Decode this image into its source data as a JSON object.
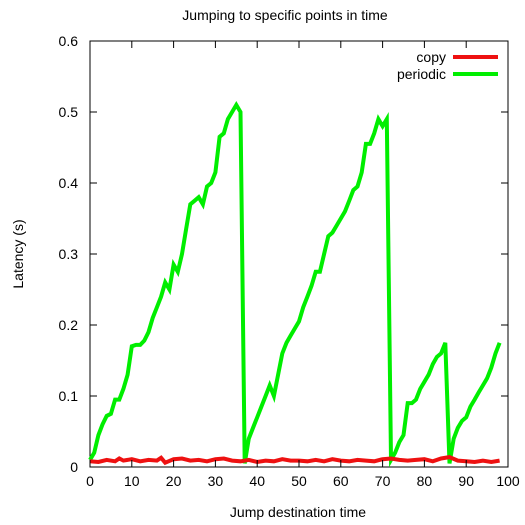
{
  "chart_data": {
    "type": "line",
    "title": "Jumping to specific points in time",
    "xlabel": "Jump destination time",
    "ylabel": "Latency (s)",
    "xlim": [
      0,
      100
    ],
    "ylim": [
      0,
      0.6
    ],
    "xticks": [
      0,
      10,
      20,
      30,
      40,
      50,
      60,
      70,
      80,
      90,
      100
    ],
    "yticks": [
      0,
      0.1,
      0.2,
      0.3,
      0.4,
      0.5,
      0.6
    ],
    "ytick_labels": [
      "0",
      "0.1",
      "0.2",
      "0.3",
      "0.4",
      "0.5",
      "0.6"
    ],
    "grid": false,
    "legend_position": "top-right",
    "series": [
      {
        "name": "copy",
        "color": "#ee1111",
        "x": [
          0,
          2,
          4,
          6,
          7,
          8,
          10,
          12,
          14,
          16,
          17,
          18,
          20,
          22,
          24,
          26,
          28,
          30,
          32,
          34,
          36,
          38,
          40,
          42,
          44,
          46,
          48,
          50,
          52,
          54,
          56,
          58,
          60,
          62,
          64,
          66,
          68,
          70,
          72,
          74,
          76,
          78,
          80,
          82,
          84,
          86,
          88,
          90,
          92,
          94,
          96,
          98
        ],
        "y": [
          0.008,
          0.007,
          0.01,
          0.008,
          0.012,
          0.009,
          0.011,
          0.008,
          0.01,
          0.009,
          0.013,
          0.006,
          0.011,
          0.012,
          0.009,
          0.01,
          0.008,
          0.011,
          0.012,
          0.009,
          0.008,
          0.01,
          0.007,
          0.009,
          0.008,
          0.011,
          0.009,
          0.009,
          0.008,
          0.01,
          0.008,
          0.011,
          0.009,
          0.008,
          0.01,
          0.009,
          0.008,
          0.011,
          0.012,
          0.01,
          0.009,
          0.01,
          0.011,
          0.008,
          0.012,
          0.014,
          0.009,
          0.008,
          0.007,
          0.009,
          0.007,
          0.009
        ]
      },
      {
        "name": "periodic",
        "color": "#00ee00",
        "x": [
          0,
          1,
          2,
          3,
          4,
          5,
          6,
          7,
          8,
          9,
          10,
          11,
          12,
          13,
          14,
          15,
          16,
          17,
          18,
          19,
          20,
          21,
          22,
          23,
          24,
          25,
          26,
          27,
          28,
          29,
          30,
          31,
          32,
          33,
          34,
          35,
          36,
          37,
          38,
          39,
          40,
          41,
          42,
          43,
          44,
          45,
          46,
          47,
          48,
          49,
          50,
          51,
          52,
          53,
          54,
          55,
          56,
          57,
          58,
          59,
          60,
          61,
          62,
          63,
          64,
          65,
          66,
          67,
          68,
          69,
          70,
          71,
          72,
          73,
          74,
          75,
          76,
          77,
          78,
          79,
          80,
          81,
          82,
          83,
          84,
          85,
          86,
          87,
          88,
          89,
          90,
          91,
          92,
          93,
          94,
          95,
          96,
          97,
          98
        ],
        "y": [
          0.01,
          0.02,
          0.045,
          0.06,
          0.072,
          0.075,
          0.095,
          0.095,
          0.11,
          0.13,
          0.17,
          0.172,
          0.172,
          0.178,
          0.19,
          0.21,
          0.225,
          0.24,
          0.26,
          0.25,
          0.285,
          0.275,
          0.3,
          0.335,
          0.37,
          0.375,
          0.38,
          0.37,
          0.395,
          0.4,
          0.415,
          0.465,
          0.47,
          0.49,
          0.5,
          0.51,
          0.5,
          0.005,
          0.04,
          0.055,
          0.07,
          0.085,
          0.1,
          0.115,
          0.1,
          0.13,
          0.16,
          0.175,
          0.185,
          0.195,
          0.205,
          0.225,
          0.24,
          0.255,
          0.275,
          0.275,
          0.3,
          0.325,
          0.33,
          0.34,
          0.35,
          0.36,
          0.375,
          0.39,
          0.395,
          0.415,
          0.455,
          0.455,
          0.47,
          0.49,
          0.48,
          0.49,
          0.01,
          0.02,
          0.035,
          0.045,
          0.09,
          0.09,
          0.095,
          0.11,
          0.12,
          0.13,
          0.145,
          0.155,
          0.16,
          0.175,
          0.005,
          0.04,
          0.055,
          0.065,
          0.07,
          0.085,
          0.095,
          0.105,
          0.115,
          0.125,
          0.14,
          0.16,
          0.175
        ]
      }
    ]
  }
}
